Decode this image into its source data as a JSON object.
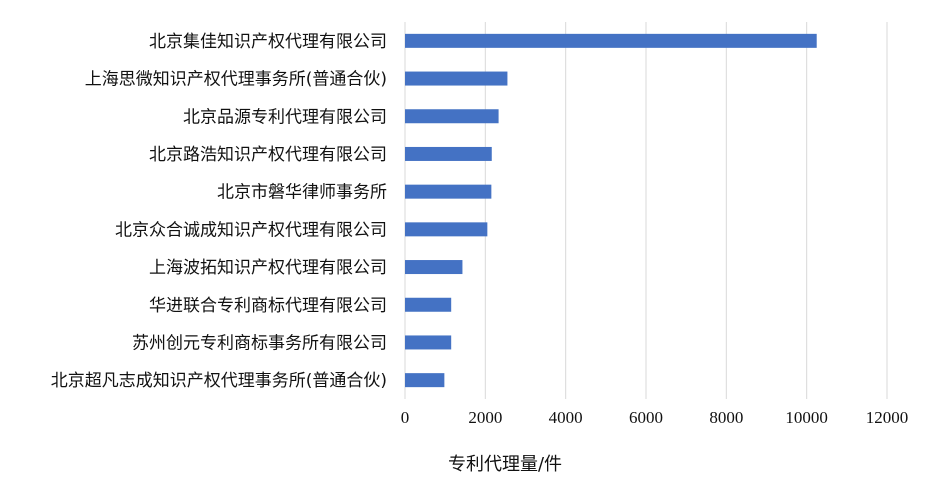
{
  "chart_data": {
    "type": "bar",
    "orientation": "horizontal",
    "categories": [
      "北京集佳知识产权代理有限公司",
      "上海思微知识产权代理事务所(普通合伙)",
      "北京品源专利代理有限公司",
      "北京路浩知识产权代理有限公司",
      "北京市磐华律师事务所",
      "北京众合诚成知识产权代理有限公司",
      "上海波拓知识产权代理有限公司",
      "华进联合专利商标代理有限公司",
      "苏州创元专利商标事务所有限公司",
      "北京超凡志成知识产权代理事务所(普通合伙)"
    ],
    "values": [
      10250,
      2550,
      2330,
      2160,
      2150,
      2050,
      1430,
      1150,
      1150,
      980
    ],
    "xlabel": "专利代理量/件",
    "ylabel": "",
    "xlim": [
      0,
      12000
    ],
    "xticks": [
      "0",
      "2000",
      "4000",
      "6000",
      "8000",
      "10000",
      "12000"
    ],
    "grid": "vertical",
    "legend": "none",
    "bar_color": "#4472C4",
    "grid_color": "#D9D9D9"
  }
}
